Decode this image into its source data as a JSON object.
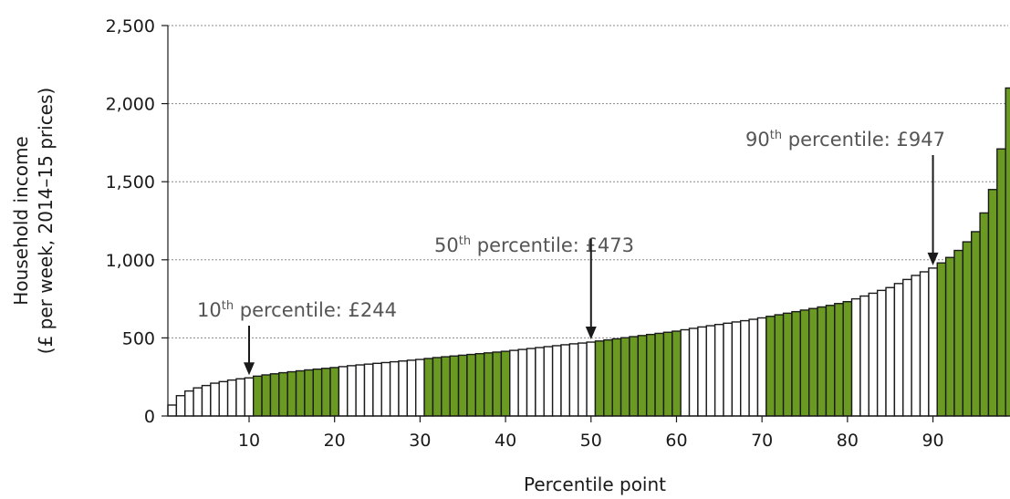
{
  "chart_data": {
    "type": "bar",
    "xlabel": "Percentile point",
    "ylabel_line1": "Household income",
    "ylabel_line2": "(£ per week, 2014–15 prices)",
    "ylim": [
      0,
      2500
    ],
    "y_ticks": [
      "0",
      "500",
      "1,000",
      "1,500",
      "2,000",
      "2,500"
    ],
    "y_tick_values": [
      0,
      500,
      1000,
      1500,
      2000,
      2500
    ],
    "x_ticks": [
      "10",
      "20",
      "30",
      "40",
      "50",
      "60",
      "70",
      "80",
      "90"
    ],
    "x_tick_values": [
      10,
      20,
      30,
      40,
      50,
      60,
      70,
      80,
      90
    ],
    "grid": "horizontal dotted",
    "x": [
      1,
      2,
      3,
      4,
      5,
      6,
      7,
      8,
      9,
      10,
      11,
      12,
      13,
      14,
      15,
      16,
      17,
      18,
      19,
      20,
      21,
      22,
      23,
      24,
      25,
      26,
      27,
      28,
      29,
      30,
      31,
      32,
      33,
      34,
      35,
      36,
      37,
      38,
      39,
      40,
      41,
      42,
      43,
      44,
      45,
      46,
      47,
      48,
      49,
      50,
      51,
      52,
      53,
      54,
      55,
      56,
      57,
      58,
      59,
      60,
      61,
      62,
      63,
      64,
      65,
      66,
      67,
      68,
      69,
      70,
      71,
      72,
      73,
      74,
      75,
      76,
      77,
      78,
      79,
      80,
      81,
      82,
      83,
      84,
      85,
      86,
      87,
      88,
      89,
      90,
      91,
      92,
      93,
      94,
      95,
      96,
      97,
      98,
      99
    ],
    "values": [
      70,
      130,
      160,
      180,
      195,
      210,
      220,
      230,
      238,
      244,
      255,
      263,
      270,
      277,
      283,
      289,
      295,
      300,
      305,
      310,
      316,
      322,
      327,
      332,
      337,
      342,
      347,
      352,
      357,
      362,
      368,
      374,
      379,
      384,
      389,
      394,
      399,
      404,
      409,
      414,
      420,
      426,
      432,
      438,
      444,
      450,
      456,
      462,
      467,
      473,
      480,
      487,
      494,
      501,
      508,
      515,
      522,
      529,
      536,
      543,
      552,
      561,
      570,
      578,
      586,
      594,
      602,
      610,
      619,
      628,
      638,
      648,
      658,
      668,
      678,
      688,
      698,
      708,
      720,
      732,
      750,
      768,
      786,
      804,
      822,
      848,
      874,
      900,
      923,
      947,
      980,
      1015,
      1060,
      1115,
      1180,
      1300,
      1450,
      1710,
      2100
    ],
    "bar_colors": {
      "highlight": "#6a9a22",
      "plain": "#ffffff",
      "outline": "#1a1a1a"
    },
    "highlight_ranges": [
      [
        11,
        20
      ],
      [
        31,
        40
      ],
      [
        51,
        60
      ],
      [
        71,
        80
      ],
      [
        91,
        99
      ]
    ],
    "annotations": [
      {
        "pre": "10",
        "sup": "th",
        "post": " percentile: £244",
        "x": 10,
        "value": 244
      },
      {
        "pre": "50",
        "sup": "th",
        "post": " percentile: £473",
        "x": 50,
        "value": 473
      },
      {
        "pre": "90",
        "sup": "th",
        "post": " percentile: £947",
        "x": 90,
        "value": 947
      }
    ]
  }
}
